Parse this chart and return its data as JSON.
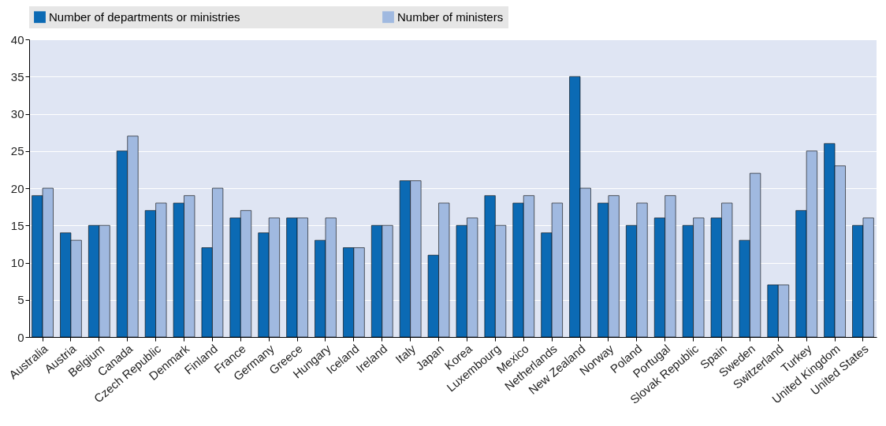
{
  "chart_data": {
    "type": "bar",
    "categories": [
      "Australia",
      "Austria",
      "Belgium",
      "Canada",
      "Czech Republic",
      "Denmark",
      "Finland",
      "France",
      "Germany",
      "Greece",
      "Hungary",
      "Iceland",
      "Ireland",
      "Italy",
      "Japan",
      "Korea",
      "Luxembourg",
      "Mexico",
      "Netherlands",
      "New Zealand",
      "Norway",
      "Poland",
      "Portugal",
      "Slovak Republic",
      "Spain",
      "Sweden",
      "Switzerland",
      "Turkey",
      "United Kingdom",
      "United States"
    ],
    "series": [
      {
        "name": "Number of departments or ministries",
        "color": "#0b6ab4",
        "values": [
          19,
          14,
          15,
          25,
          17,
          18,
          12,
          16,
          14,
          16,
          13,
          12,
          15,
          21,
          11,
          15,
          19,
          18,
          14,
          35,
          18,
          15,
          16,
          15,
          16,
          13,
          7,
          17,
          26,
          15
        ]
      },
      {
        "name": "Number of ministers",
        "color": "#a0b9e0",
        "values": [
          20,
          13,
          15,
          27,
          18,
          19,
          20,
          17,
          16,
          16,
          16,
          12,
          15,
          21,
          18,
          16,
          15,
          19,
          18,
          20,
          19,
          18,
          19,
          16,
          18,
          22,
          7,
          25,
          23,
          16
        ]
      }
    ],
    "ylim": [
      0,
      40
    ],
    "yticks": [
      0,
      5,
      10,
      15,
      20,
      25,
      30,
      35,
      40
    ],
    "grid": "y",
    "legend": "top"
  }
}
